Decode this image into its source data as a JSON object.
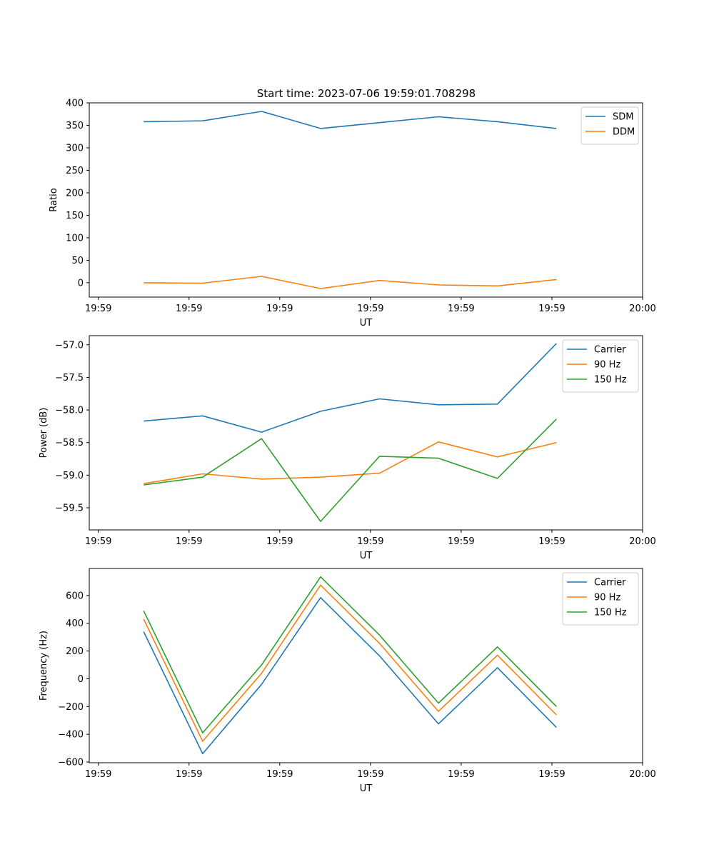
{
  "figure": {
    "title": "Start time: 2023-07-06 19:59:01.708298"
  },
  "colors": {
    "blue": "#1f77b4",
    "orange": "#ff7f0e",
    "green": "#2ca02c"
  },
  "chart_data": [
    {
      "type": "line",
      "id": "ratio",
      "title": "Start time: 2023-07-06 19:59:01.708298",
      "xlabel": "UT",
      "ylabel": "Ratio",
      "x": [
        0.5,
        1.15,
        1.8,
        2.45,
        3.1,
        3.75,
        4.4,
        5.05
      ],
      "xlim": [
        -0.1,
        6.0
      ],
      "xticks": [
        0,
        1,
        2,
        3,
        4,
        5,
        6
      ],
      "xticklabels": [
        "19:59",
        "19:59",
        "19:59",
        "19:59",
        "19:59",
        "19:59",
        "20:00"
      ],
      "ylim": [
        -32,
        400
      ],
      "yticks": [
        0,
        50,
        100,
        150,
        200,
        250,
        300,
        350,
        400
      ],
      "yticklabels": [
        "0",
        "50",
        "100",
        "150",
        "200",
        "250",
        "300",
        "350",
        "400"
      ],
      "legend_loc": "upper right",
      "series": [
        {
          "name": "SDM",
          "color": "#1f77b4",
          "values": [
            358,
            360,
            381,
            343,
            356,
            369,
            358,
            343
          ]
        },
        {
          "name": "DDM",
          "color": "#ff7f0e",
          "values": [
            0,
            -1,
            14,
            -13,
            5,
            -5,
            -7,
            7
          ]
        }
      ]
    },
    {
      "type": "line",
      "id": "power",
      "title": "",
      "xlabel": "UT",
      "ylabel": "Power (dB)",
      "x": [
        0.5,
        1.15,
        1.8,
        2.45,
        3.1,
        3.75,
        4.4,
        5.05
      ],
      "xlim": [
        -0.1,
        6.0
      ],
      "xticks": [
        0,
        1,
        2,
        3,
        4,
        5,
        6
      ],
      "xticklabels": [
        "19:59",
        "19:59",
        "19:59",
        "19:59",
        "19:59",
        "19:59",
        "20:00"
      ],
      "ylim": [
        -59.84,
        -56.86
      ],
      "yticks": [
        -59.5,
        -59.0,
        -58.5,
        -58.0,
        -57.5,
        -57.0
      ],
      "yticklabels": [
        "−59.5",
        "−59.0",
        "−58.5",
        "−58.0",
        "−57.5",
        "−57.0"
      ],
      "legend_loc": "upper right",
      "series": [
        {
          "name": "Carrier",
          "color": "#1f77b4",
          "values": [
            -58.17,
            -58.09,
            -58.34,
            -58.02,
            -57.83,
            -57.92,
            -57.91,
            -56.98
          ]
        },
        {
          "name": "90 Hz",
          "color": "#ff7f0e",
          "values": [
            -59.13,
            -58.98,
            -59.06,
            -59.03,
            -58.97,
            -58.49,
            -58.72,
            -58.5
          ]
        },
        {
          "name": "150 Hz",
          "color": "#2ca02c",
          "values": [
            -59.15,
            -59.03,
            -58.44,
            -59.71,
            -58.71,
            -58.74,
            -59.05,
            -58.14
          ]
        }
      ]
    },
    {
      "type": "line",
      "id": "frequency",
      "title": "",
      "xlabel": "UT",
      "ylabel": "Frequency (Hz)",
      "x": [
        0.5,
        1.15,
        1.8,
        2.45,
        3.1,
        3.75,
        4.4,
        5.05
      ],
      "xlim": [
        -0.1,
        6.0
      ],
      "xticks": [
        0,
        1,
        2,
        3,
        4,
        5,
        6
      ],
      "xticklabels": [
        "19:59",
        "19:59",
        "19:59",
        "19:59",
        "19:59",
        "19:59",
        "20:00"
      ],
      "ylim": [
        -605,
        795
      ],
      "yticks": [
        -600,
        -400,
        -200,
        0,
        200,
        400,
        600
      ],
      "yticklabels": [
        "−600",
        "−400",
        "−200",
        "0",
        "200",
        "400",
        "600"
      ],
      "legend_loc": "upper right",
      "series": [
        {
          "name": "Carrier",
          "color": "#1f77b4",
          "values": [
            340,
            -540,
            -40,
            585,
            165,
            -325,
            80,
            -350
          ]
        },
        {
          "name": "90 Hz",
          "color": "#ff7f0e",
          "values": [
            430,
            -450,
            40,
            675,
            255,
            -235,
            170,
            -260
          ]
        },
        {
          "name": "150 Hz",
          "color": "#2ca02c",
          "values": [
            490,
            -390,
            100,
            735,
            315,
            -175,
            230,
            -200
          ]
        }
      ]
    }
  ]
}
